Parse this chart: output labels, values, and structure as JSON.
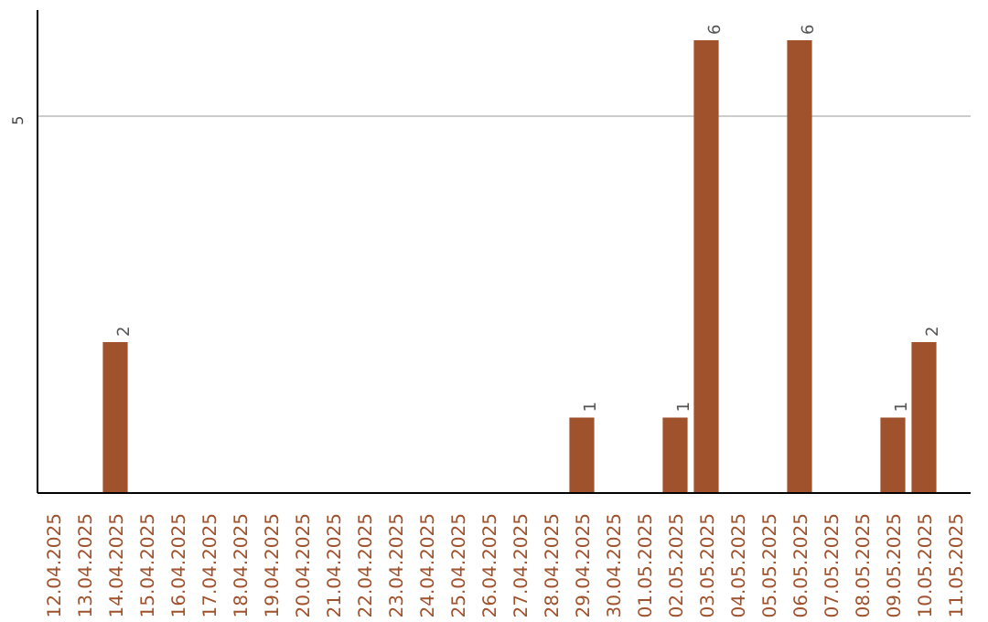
{
  "chart_data": {
    "type": "bar",
    "categories": [
      "12.04.2025",
      "13.04.2025",
      "14.04.2025",
      "15.04.2025",
      "16.04.2025",
      "17.04.2025",
      "18.04.2025",
      "19.04.2025",
      "20.04.2025",
      "21.04.2025",
      "22.04.2025",
      "23.04.2025",
      "24.04.2025",
      "25.04.2025",
      "26.04.2025",
      "27.04.2025",
      "28.04.2025",
      "29.04.2025",
      "30.04.2025",
      "01.05.2025",
      "02.05.2025",
      "03.05.2025",
      "04.05.2025",
      "05.05.2025",
      "06.05.2025",
      "07.05.2025",
      "08.05.2025",
      "09.05.2025",
      "10.05.2025",
      "11.05.2025"
    ],
    "values": [
      0,
      0,
      2,
      0,
      0,
      0,
      0,
      0,
      0,
      0,
      0,
      0,
      0,
      0,
      0,
      0,
      0,
      1,
      0,
      0,
      1,
      6,
      0,
      0,
      6,
      0,
      0,
      1,
      2,
      0
    ],
    "value_labels": [
      null,
      null,
      "2",
      null,
      null,
      null,
      null,
      null,
      null,
      null,
      null,
      null,
      null,
      null,
      null,
      null,
      null,
      "1",
      null,
      null,
      "1",
      "6",
      null,
      null,
      "6",
      null,
      null,
      "1",
      "2",
      null
    ],
    "color": "#a0522d",
    "ylim": [
      0,
      6.4
    ],
    "yticks": [
      5
    ],
    "grid": "y"
  }
}
